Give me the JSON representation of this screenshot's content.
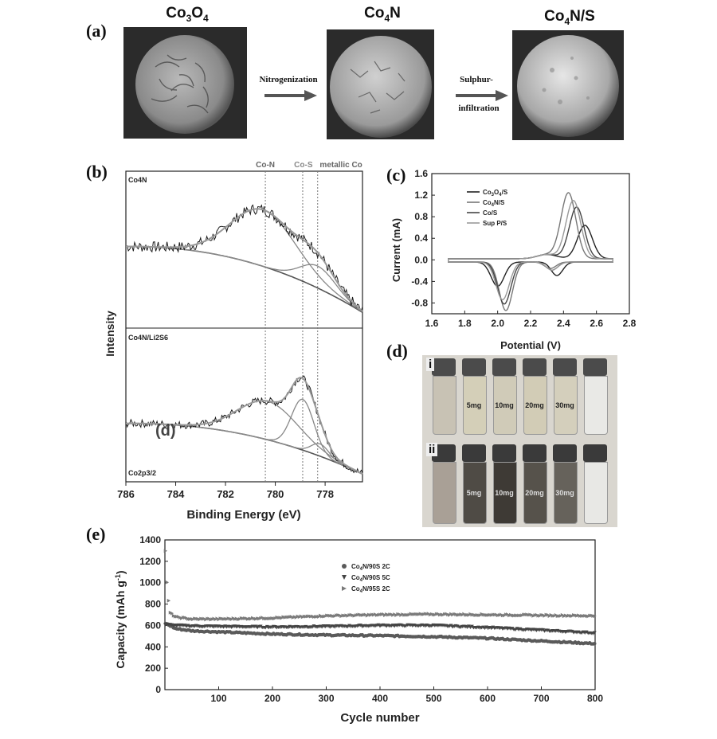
{
  "panel_labels": {
    "a": "(a)",
    "b": "(b)",
    "c": "(c)",
    "d": "(d)",
    "e": "(e)"
  },
  "panel_a": {
    "materials": [
      {
        "base": "Co",
        "sub": "3",
        "mid": "O",
        "sub2": "4",
        "tail": ""
      },
      {
        "base": "Co",
        "sub": "4",
        "mid": "N",
        "sub2": "",
        "tail": ""
      },
      {
        "base": "Co",
        "sub": "4",
        "mid": "N/S",
        "sub2": "",
        "tail": ""
      }
    ],
    "step1": "Nitrogenization",
    "step2_line1": "Sulphur-",
    "step2_line2": "infiltration"
  },
  "panel_b": {
    "top_label": "Co4N",
    "bottom_label": "Co4N/Li2S6",
    "orbital_label": "Co2p3/2",
    "overlay_text": "(d)",
    "ref_labels": [
      "Co-N",
      "Co-S",
      "metallic Co"
    ],
    "ylabel": "Intensity",
    "xlabel": "Binding Energy (eV)",
    "xticks": [
      "786",
      "784",
      "782",
      "780",
      "778"
    ]
  },
  "panel_c": {
    "ylabel": "Current (mA)",
    "xlabel": "Potential (V)",
    "xticks": [
      "1.6",
      "1.8",
      "2.0",
      "2.2",
      "2.4",
      "2.6",
      "2.8"
    ],
    "yticks": [
      "1.6",
      "1.2",
      "0.8",
      "0.4",
      "0.0",
      "-0.4",
      "-0.8"
    ],
    "legend": [
      "Co3O4/S",
      "Co4N/S",
      "Co/S",
      "Sup P/S"
    ]
  },
  "panel_d": {
    "row_i": "i",
    "row_ii": "ii",
    "vial_labels": [
      "",
      "5mg",
      "10mg",
      "20mg",
      "30mg",
      ""
    ]
  },
  "chart_data": [
    {
      "type": "line",
      "title": "",
      "xlabel": "Binding Energy (eV)",
      "ylabel": "Intensity",
      "xlim": [
        786,
        776.5
      ],
      "reference_lines": [
        {
          "label": "Co-N",
          "x": 780.4
        },
        {
          "label": "Co-S",
          "x": 778.9
        },
        {
          "label": "metallic Co",
          "x": 778.3
        }
      ],
      "panels": [
        "Co4N",
        "Co4N/Li2S6"
      ]
    },
    {
      "type": "line",
      "title": "",
      "xlabel": "Potential (V)",
      "ylabel": "Current (mA)",
      "xlim": [
        1.6,
        2.8
      ],
      "ylim": [
        -1.0,
        1.6
      ],
      "series": [
        {
          "name": "Co3O4/S",
          "peaks": [
            {
              "x": 2.53,
              "y": 0.62
            },
            {
              "x": 2.0,
              "y": -0.45
            },
            {
              "x": 2.36,
              "y": -0.25
            }
          ]
        },
        {
          "name": "Co4N/S",
          "peaks": [
            {
              "x": 2.43,
              "y": 1.22
            },
            {
              "x": 2.05,
              "y": -0.9
            },
            {
              "x": 2.32,
              "y": -0.12
            }
          ]
        },
        {
          "name": "Co/S",
          "peaks": [
            {
              "x": 2.48,
              "y": 0.96
            },
            {
              "x": 2.04,
              "y": -0.78
            }
          ]
        },
        {
          "name": "Sup P/S",
          "peaks": [
            {
              "x": 2.46,
              "y": 1.08
            },
            {
              "x": 2.03,
              "y": -0.7
            }
          ]
        }
      ]
    },
    {
      "type": "scatter",
      "title": "",
      "xlabel": "Cycle number",
      "ylabel": "Capacity (mAh g-1)",
      "xlim": [
        0,
        800
      ],
      "ylim": [
        0,
        1400
      ],
      "xticks": [
        100,
        200,
        300,
        400,
        500,
        600,
        700,
        800
      ],
      "yticks": [
        0,
        200,
        400,
        600,
        800,
        1000,
        1200,
        1400
      ],
      "series": [
        {
          "name": "Co4N/90S  2C",
          "marker": "circle",
          "x": [
            1,
            20,
            50,
            100,
            200,
            300,
            400,
            500,
            600,
            700,
            800
          ],
          "values": [
            620,
            570,
            550,
            540,
            520,
            510,
            505,
            495,
            480,
            455,
            430
          ]
        },
        {
          "name": "Co4N/90S  5C",
          "marker": "triangle-down",
          "x": [
            1,
            20,
            50,
            100,
            200,
            300,
            400,
            500,
            600,
            700,
            800
          ],
          "values": [
            610,
            600,
            595,
            590,
            585,
            590,
            600,
            600,
            580,
            555,
            530
          ]
        },
        {
          "name": "Co4N/95S  2C",
          "marker": "triangle-right",
          "x": [
            1,
            5,
            10,
            20,
            50,
            100,
            200,
            300,
            400,
            500,
            600,
            700,
            800
          ],
          "values": [
            1300,
            900,
            720,
            680,
            660,
            660,
            670,
            690,
            700,
            705,
            700,
            695,
            690
          ]
        }
      ]
    }
  ],
  "colors": {
    "dark": "#1e1e1e",
    "mid": "#6e6e6e",
    "light": "#9a9a9a",
    "ref": "#777777"
  }
}
